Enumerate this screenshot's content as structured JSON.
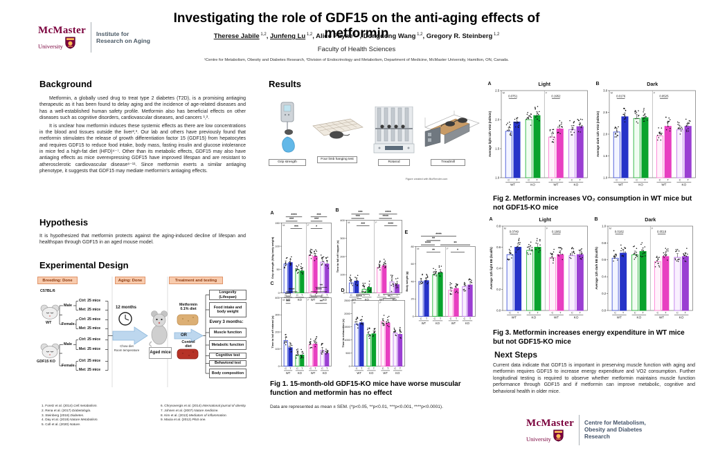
{
  "brand": {
    "mcmaster": "McMaster",
    "university": "University",
    "iroa": [
      "Institute for",
      "Research on Aging"
    ],
    "cmodr": [
      "Centre for Metabolism,",
      "Obesity and Diabetes",
      "Research"
    ],
    "maroon": "#7a003c",
    "gold": "#fdbf57"
  },
  "header": {
    "title": "Investigating the role of GDF15 on the anti-aging effects of metformin",
    "authors": [
      {
        "name": "Therese Jabile",
        "sup": "1,2",
        "underline": true
      },
      {
        "name": "Junfeng Lu",
        "sup": "1,2",
        "underline": true
      },
      {
        "name": "Alice Payne",
        "sup": "1,2",
        "underline": false
      },
      {
        "name": "Dongdong Wang",
        "sup": "1,2",
        "underline": false
      },
      {
        "name": "Gregory R. Steinberg",
        "sup": "1,2",
        "underline": false
      }
    ],
    "faculty": "Faculty of Health Sciences",
    "affiliations": "¹Centre for Metabolism, Obesity and Diabetes Research, ²Division of Endocrinology and Metabolism, Department of Medicine, McMaster University, Hamilton, ON, Canada."
  },
  "background": {
    "heading": "Background",
    "para1": "Metformin, a globally used drug to treat type 2 diabetes (T2D), is a promising antiaging therapeutic as it has been found to delay aging and the incidence of age-related diseases and has a well-established human safety profile. Metformin also has beneficial effects on other diseases such as cognitive disorders, cardiovascular diseases, and cancers ¹,².",
    "para2": "It is unclear how metformin induces these systemic effects as there are low concentrations in the blood and tissues outside the liver²,³. Our lab and others have previously found that metformin stimulates the release of growth differentiation factor 15 (GDF15) from hepatocytes and requires GDF15 to reduce food intake, body mass, fasting insulin and glucose intolerance in mice fed a high-fat diet (HFD)⁴⁻⁷. Other than its metabolic effects, GDF15 may also have antiaging effects as mice overexpressing GDF15 have improved lifespan and are resistant to atherosclerotic cardiovascular disease⁸⁻¹¹. Since metformin exerts a similar antiaging phenotype, it suggests that GDF15 may mediate metformin's antiaging effects."
  },
  "hypothesis": {
    "heading": "Hypothesis",
    "text": "It is hypothesized that metformin protects against the aging-induced decline of lifespan and healthspan through GDF15 in an aged mouse model."
  },
  "design": {
    "heading": "Experimental Design",
    "stages": [
      "Breeding: Done",
      "Aging: Done",
      "Treatment and testing"
    ],
    "strain1": "C57BL/6",
    "strain1_name": "WT",
    "strain2_name": "GDF15 KO",
    "sexes": [
      "Male",
      "Female"
    ],
    "leaf_labels": [
      "Ctrl: 25 mice",
      "Met: 25 mice"
    ],
    "aging": {
      "duration": "12 months",
      "cond1": "Chow diet",
      "cond2": "Room temperature",
      "result": "Aged mice"
    },
    "treatment": {
      "a1": "Metformin",
      "a2": "0.1% diet",
      "or": "OR",
      "b1": "Control",
      "b2": "diet"
    },
    "tests": [
      "Longevity (Lifespan)",
      "Food intake and body weight"
    ],
    "every3": "Every 3 months:",
    "tests2": [
      "Muscle function",
      "Metabolic function",
      "Cognitive test",
      "Behavioral test",
      "Body composition"
    ]
  },
  "references": [
    {
      "n": 1,
      "t": "Foretz et al. (2014)",
      "j": "Cell metabolism."
    },
    {
      "n": 2,
      "t": "Rena et al. (2017)",
      "j": "Diabetologia."
    },
    {
      "n": 3,
      "t": "Steinberg (2018)",
      "j": "Diabetes."
    },
    {
      "n": 4,
      "t": "Day et al. (2019)",
      "j": "Nature Metabolism."
    },
    {
      "n": 5,
      "t": "Coll et al. (2020)",
      "j": "Nature."
    },
    {
      "n": 6,
      "t": "Chrysovergis et al. (2014)",
      "j": "International journal of obesity."
    },
    {
      "n": 7,
      "t": "Johnen et al. (2007)",
      "j": "Nature medicine."
    },
    {
      "n": 8,
      "t": "Kim et al. (2013)",
      "j": "Mediators of inflammation."
    },
    {
      "n": 9,
      "t": "Macia et al. (2012)",
      "j": "PloS one."
    }
  ],
  "results": {
    "heading": "Results",
    "equipment": [
      "Grip strength",
      "Four limb hanging test",
      "Rotarod",
      "Treadmill"
    ],
    "biorender": "Figure created with BioRender.com"
  },
  "fig1": {
    "caption": "Fig 1. 15-month-old GDF15-KO mice have worse muscular function and metformin has no effect",
    "note": "Data are represented as mean ± SEM. (*p<0.05, **p<0.01, ***p<0.001, ****p<0.0001)."
  },
  "fig2": {
    "caption": "Fig 2. Metformin increases VO₂ consumption in WT mice but not GDF15-KO mice"
  },
  "fig3": {
    "caption": "Fig 3. Metformin increases energy expenditure in WT mice but not GDF15-KO mice"
  },
  "next_steps": {
    "heading": "Next Steps",
    "text": "Current data indicate that GDF15 is important in preserving muscle function with aging and metformin requires GDF15 to increase energy expenditure and VO2 consumption. Further longitudinal testing is required to observe whether metformin maintains muscle function performance through GDF15 and if metformin can improve metabolic, cognitive and behavioral health in older mice."
  },
  "chart_data": {
    "type": "bar",
    "shared": {
      "xcats": [
        "C",
        "T",
        "C",
        "T",
        "C",
        "T",
        "C",
        "T"
      ],
      "xgroups": [
        "WT",
        "KO",
        "WT",
        "KO"
      ],
      "sex_labels": [
        "M",
        "F"
      ],
      "bar_styles": [
        {
          "stroke": "#4656d8",
          "fill": "#f3f5ff"
        },
        {
          "stroke": "#2633c8",
          "fill": "#2633c8"
        },
        {
          "stroke": "#27b43a",
          "fill": "#f1fcf2"
        },
        {
          "stroke": "#0aa32d",
          "fill": "#0aa32d"
        },
        {
          "stroke": "#ff80d5",
          "fill": "#fff2fb"
        },
        {
          "stroke": "#e83fc1",
          "fill": "#e83fc1"
        },
        {
          "stroke": "#bf7cec",
          "fill": "#f9f0fe"
        },
        {
          "stroke": "#9a3fd2",
          "fill": "#9a3fd2"
        }
      ]
    },
    "fig1": {
      "panels": [
        {
          "letter": "A",
          "ylabel": "Grip strength (N/kg body weight)",
          "ymin": 0,
          "ymax": 150,
          "tickvals": [
            0,
            50,
            100,
            150
          ],
          "yticks": [
            "0",
            "50",
            "100",
            "150"
          ],
          "values": [
            62,
            65,
            50,
            47,
            80,
            78,
            66,
            62
          ],
          "sigs_above": [
            {
              "f": 0,
              "t": 2,
              "r": 1,
              "s": "***"
            },
            {
              "f": 4,
              "t": 6,
              "r": 1,
              "s": "***"
            },
            {
              "f": 0,
              "t": 3,
              "r": 2,
              "s": "****"
            },
            {
              "f": 4,
              "t": 7,
              "r": 2,
              "s": "***"
            }
          ],
          "sigs_inside": [
            {
              "f": 1,
              "t": 3,
              "s": "***"
            },
            {
              "f": 4,
              "t": 6,
              "s": "*"
            }
          ]
        },
        {
          "letter": "B",
          "ylabel": "Time to fall off hopper (s)",
          "ymin": 0,
          "ymax": 400,
          "tickvals": [
            0,
            100,
            200,
            300,
            400
          ],
          "yticks": [
            "0",
            "100",
            "200",
            "300",
            "400"
          ],
          "values": [
            55,
            65,
            20,
            30,
            140,
            150,
            60,
            45
          ],
          "sigs_above": [
            {
              "f": 0,
              "t": 2,
              "r": 1,
              "s": "***"
            },
            {
              "f": 4,
              "t": 6,
              "r": 1,
              "s": "****"
            },
            {
              "f": 0,
              "t": 3,
              "r": 2,
              "s": "***"
            },
            {
              "f": 4,
              "t": 7,
              "r": 2,
              "s": "****"
            }
          ],
          "sigs_inside": [
            {
              "f": 1,
              "t": 3,
              "s": "***"
            },
            {
              "f": 5,
              "t": 7,
              "s": "****"
            }
          ]
        },
        {
          "letter": "C",
          "ylabel": "Time to fall off rotarod (s)",
          "ymin": 0,
          "ymax": 400,
          "tickvals": [
            0,
            100,
            200,
            300,
            400
          ],
          "yticks": [
            "0",
            "100",
            "200",
            "300",
            "400"
          ],
          "values": [
            150,
            108,
            62,
            65,
            126,
            130,
            92,
            76
          ],
          "sigs_above": [
            {
              "f": 0,
              "t": 1,
              "r": 1,
              "s": "****"
            },
            {
              "f": 4,
              "t": 6,
              "r": 1,
              "s": "*"
            },
            {
              "f": 0,
              "t": 2,
              "r": 2,
              "s": "****"
            },
            {
              "f": 4,
              "t": 7,
              "r": 2,
              "s": "****"
            },
            {
              "f": 5,
              "t": 7,
              "r": 3,
              "s": "**"
            }
          ],
          "sigs_inside": [
            {
              "f": 0,
              "t": 1,
              "s": "***"
            },
            {
              "f": 5,
              "t": 7,
              "s": "**"
            }
          ]
        },
        {
          "letter": "D",
          "ylabel": "Time to exhaustion (s)",
          "ymin": 0,
          "ymax": 2500,
          "tickvals": [
            0,
            500,
            1000,
            1500,
            2000,
            2500
          ],
          "yticks": [
            "0",
            "500",
            "1000",
            "1500",
            "2000",
            "2500"
          ],
          "values": [
            1600,
            1650,
            1200,
            1230,
            1700,
            1640,
            1260,
            1210
          ],
          "sigs_above": [
            {
              "f": 0,
              "t": 2,
              "r": 2,
              "s": "**"
            },
            {
              "f": 0,
              "t": 1,
              "r": 1,
              "s": "****"
            },
            {
              "f": 4,
              "t": 7,
              "r": 2,
              "s": "*"
            },
            {
              "f": 4,
              "t": 6,
              "r": 1,
              "s": "**"
            }
          ],
          "sigs_inside": []
        },
        {
          "letter": "E",
          "ylabel": "Body weight (g)",
          "ymin": 0,
          "ymax": 80,
          "tickvals": [
            0,
            20,
            40,
            60,
            80
          ],
          "yticks": [
            "0",
            "20",
            "40",
            "60",
            "80"
          ],
          "values": [
            40,
            41,
            48,
            50,
            30,
            32,
            34,
            36
          ],
          "sigs_above": [
            {
              "f": 0,
              "t": 5,
              "r": 3,
              "s": "****"
            },
            {
              "f": 1,
              "t": 3,
              "r": 2,
              "s": "**"
            },
            {
              "f": 0,
              "t": 2,
              "r": 1,
              "s": "****"
            },
            {
              "f": 3,
              "t": 7,
              "r": 1,
              "s": "**"
            }
          ],
          "sigs_inside": [
            {
              "f": 1,
              "t": 3,
              "s": "**"
            },
            {
              "f": 4,
              "t": 6,
              "s": "*"
            }
          ]
        }
      ]
    },
    "fig2": {
      "panels": [
        {
          "letter": "A",
          "title": "Light",
          "ylabel": "Average light 12h VO2 (ml/min)",
          "ymin": 1.0,
          "ymax": 2.5,
          "tickvals": [
            1.0,
            1.5,
            2.0,
            2.5
          ],
          "yticks": [
            "1.0",
            "1.5",
            "2.0",
            "2.5"
          ],
          "values": [
            1.8,
            1.96,
            2.0,
            2.07,
            1.7,
            1.84,
            1.83,
            1.88
          ],
          "pvals": [
            {
              "f": 0,
              "t": 1,
              "s": "0.0751"
            },
            {
              "f": 4,
              "t": 5,
              "s": "0.1952"
            }
          ]
        },
        {
          "letter": "B",
          "title": "Dark",
          "ylabel": "Average dark 12h VO2 (ml/min)",
          "ymin": 1.0,
          "ymax": 3.0,
          "tickvals": [
            1.0,
            1.5,
            2.0,
            2.5,
            3.0
          ],
          "yticks": [
            "1.0",
            "1.5",
            "2.0",
            "2.5",
            "3.0"
          ],
          "values": [
            2.05,
            2.4,
            2.36,
            2.38,
            1.96,
            2.18,
            2.1,
            2.18
          ],
          "pvals": [
            {
              "f": 0,
              "t": 1,
              "s": "0.0176"
            },
            {
              "f": 4,
              "t": 5,
              "s": "0.0525"
            }
          ]
        }
      ]
    },
    "fig3": {
      "panels": [
        {
          "letter": "A",
          "title": "Light",
          "ylabel": "Average 12h light EE (kcal/h)",
          "ymin": 0,
          "ymax": 0.8,
          "tickvals": [
            0,
            0.2,
            0.4,
            0.6,
            0.8
          ],
          "yticks": [
            "0.0",
            "0.2",
            "0.4",
            "0.6",
            "0.8"
          ],
          "values": [
            0.53,
            0.6,
            0.57,
            0.6,
            0.5,
            0.53,
            0.52,
            0.53
          ],
          "pvals": [
            {
              "f": 0,
              "t": 1,
              "s": "0.0749"
            },
            {
              "f": 4,
              "t": 5,
              "s": "0.1982"
            }
          ]
        },
        {
          "letter": "B",
          "title": "Dark",
          "ylabel": "Average 12h dark EE (kcal/h)",
          "ymin": 0,
          "ymax": 1.0,
          "tickvals": [
            0,
            0.2,
            0.4,
            0.6,
            0.8,
            1.0
          ],
          "yticks": [
            "0.0",
            "0.2",
            "0.4",
            "0.6",
            "0.8",
            "1.0"
          ],
          "values": [
            0.62,
            0.68,
            0.66,
            0.7,
            0.58,
            0.64,
            0.63,
            0.64
          ],
          "pvals": [
            {
              "f": 0,
              "t": 1,
              "s": "0.0182"
            },
            {
              "f": 4,
              "t": 5,
              "s": "0.0518"
            }
          ]
        }
      ]
    }
  }
}
